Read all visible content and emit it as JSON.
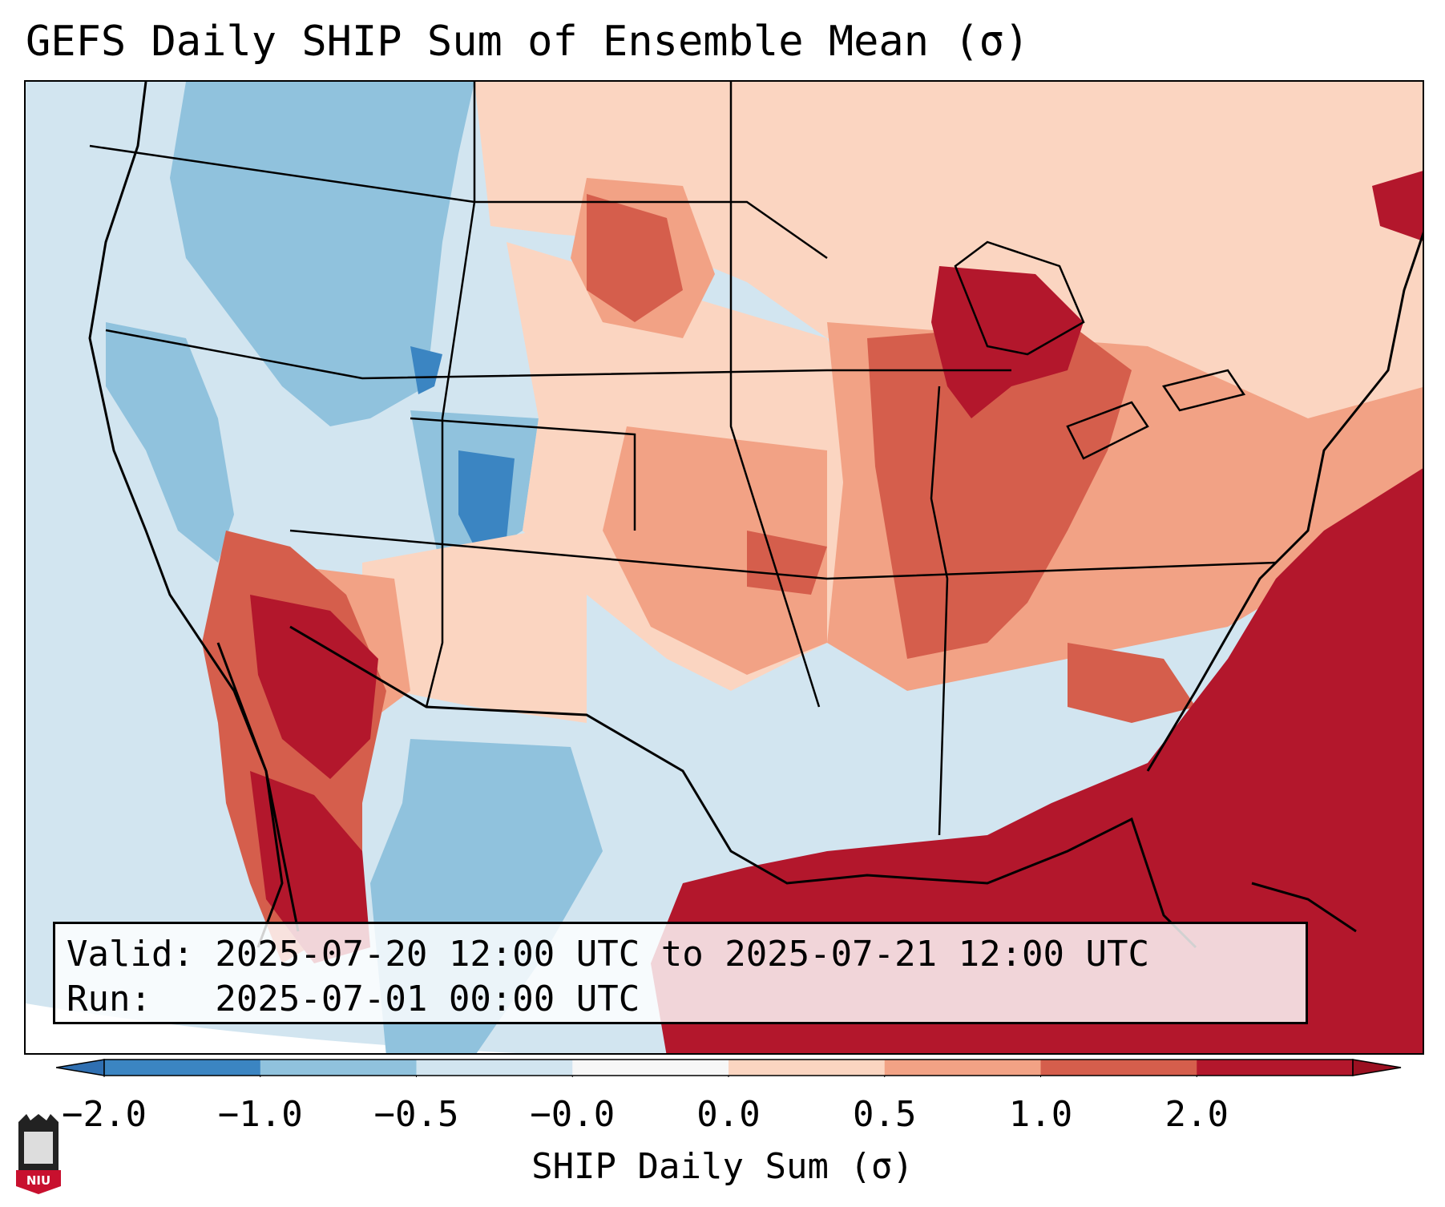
{
  "title": "GEFS Daily SHIP Sum of Ensemble Mean (σ)",
  "info": {
    "valid_line": "Valid: 2025-07-20 12:00 UTC to 2025-07-21 12:00 UTC",
    "run_line": "Run:   2025-07-01 00:00 UTC"
  },
  "colorbar": {
    "label": "SHIP Daily Sum (σ)",
    "ticks": [
      "−2.0",
      "−1.0",
      "−0.5",
      "−0.0",
      "0.0",
      "0.5",
      "1.0",
      "2.0"
    ],
    "colors": {
      "below_min": "#2f6fb1",
      "bins": [
        "#3b85c2",
        "#90c2dd",
        "#d2e5f0",
        "#f7f7f7",
        "#fbd5c1",
        "#f2a285",
        "#d55e4c",
        "#b3172c"
      ],
      "above_max": "#9b1021"
    }
  },
  "logo": {
    "name": "NIU"
  }
}
